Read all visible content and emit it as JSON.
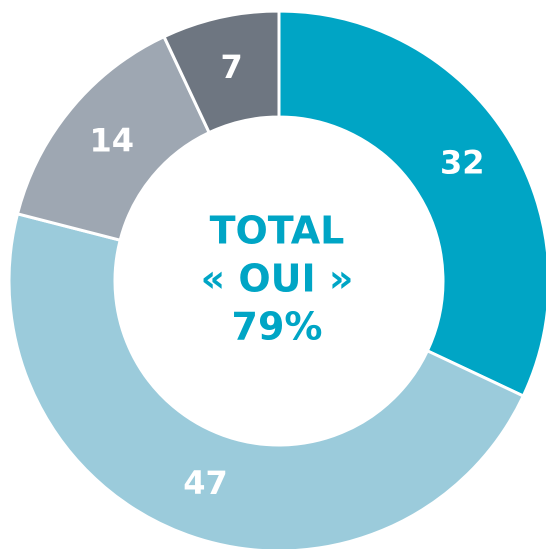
{
  "chart_data": {
    "type": "donut",
    "center_text": [
      "TOTAL",
      "« OUI »",
      "79%"
    ],
    "categories": [
      null,
      null,
      null,
      null
    ],
    "values": [
      32,
      47,
      14,
      7
    ],
    "colors": [
      "#00a5c5",
      "#9bcbdb",
      "#9ea7b2",
      "#6e7681"
    ],
    "center_color": "#00a5c5"
  }
}
